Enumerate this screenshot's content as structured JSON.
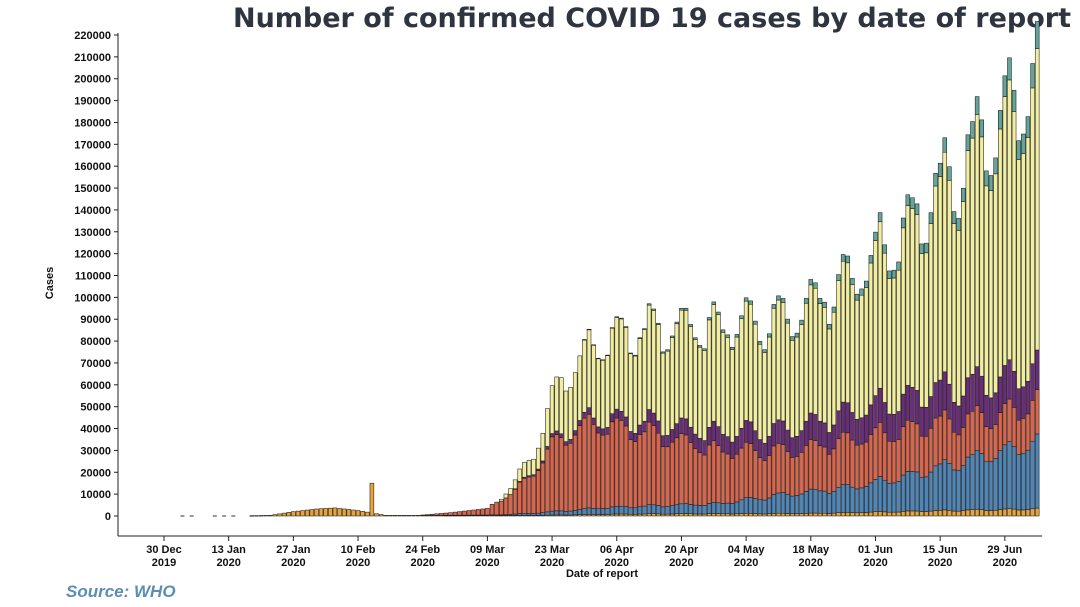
{
  "source_note": "Source: WHO",
  "colors": {
    "region1": "#e8a33a",
    "region2": "#4f86b8",
    "region3": "#d9664c",
    "region4": "#6b2d7a",
    "region5": "#f2eea0",
    "region6": "#63a59a",
    "edge": "#1a1a1a"
  },
  "chart_data": {
    "type": "bar",
    "stacked": true,
    "title": "Number of confirmed COVID 19 cases by date of report",
    "xlabel": "Date of report",
    "ylabel": "Cases",
    "ylim": [
      0,
      220000
    ],
    "y_ticks": [
      "220000",
      "210000",
      "200000",
      "190000",
      "180000",
      "170000",
      "160000",
      "150000",
      "140000",
      "130000",
      "120000",
      "110000",
      "100000",
      "90000",
      "80000",
      "70000",
      "60000",
      "50000",
      "40000",
      "30000",
      "20000",
      "10000",
      "0"
    ],
    "x_ticks": [
      {
        "line1": "30 Dec",
        "line2": "2019"
      },
      {
        "line1": "13 Jan",
        "line2": "2020"
      },
      {
        "line1": "27 Jan",
        "line2": "2020"
      },
      {
        "line1": "10 Feb",
        "line2": "2020"
      },
      {
        "line1": "24 Feb",
        "line2": "2020"
      },
      {
        "line1": "09 Mar",
        "line2": "2020"
      },
      {
        "line1": "23 Mar",
        "line2": "2020"
      },
      {
        "line1": "06 Apr",
        "line2": "2020"
      },
      {
        "line1": "20 Apr",
        "line2": "2020"
      },
      {
        "line1": "04 May",
        "line2": "2020"
      },
      {
        "line1": "18 May",
        "line2": "2020"
      },
      {
        "line1": "01 Jun",
        "line2": "2020"
      },
      {
        "line1": "15 Jun",
        "line2": "2020"
      },
      {
        "line1": "29 Jun",
        "line2": "2020"
      }
    ],
    "x_range": [
      "2019-12-30",
      "2020-07-07"
    ],
    "grid": false,
    "legend": "none",
    "series_order": [
      "region1",
      "region2",
      "region3",
      "region4",
      "region5",
      "region6"
    ],
    "approximate_totals_by_period": [
      {
        "period": "late Jan - mid Feb",
        "approx_total": 3000,
        "peak": {
          "date": "2020-02-13",
          "value": 15000
        }
      },
      {
        "period": "late Mar",
        "approx_total": 60000
      },
      {
        "period": "early Apr",
        "approx_total": 85000
      },
      {
        "period": "mid May",
        "approx_total": 100000
      },
      {
        "period": "mid Jun",
        "approx_total": 160000
      },
      {
        "period": "early Jul",
        "approx_total": 210000
      }
    ]
  }
}
